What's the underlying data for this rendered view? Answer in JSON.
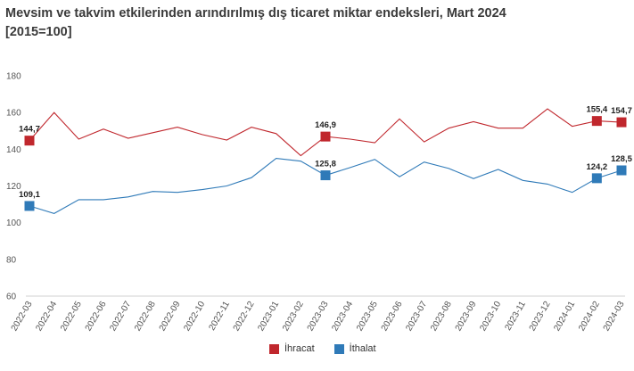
{
  "title": "Mevsim ve takvim etkilerinden arındırılmış dış ticaret miktar endeksleri, Mart 2024",
  "subtitle": "[2015=100]",
  "chart_data": {
    "type": "line",
    "ylim": [
      60,
      180
    ],
    "yticks": [
      60,
      80,
      100,
      120,
      140,
      160,
      180
    ],
    "categories": [
      "2022-03",
      "2022-04",
      "2022-05",
      "2022-06",
      "2022-07",
      "2022-08",
      "2022-09",
      "2022-10",
      "2022-11",
      "2022-12",
      "2023-01",
      "2023-02",
      "2023-03",
      "2023-04",
      "2023-05",
      "2023-06",
      "2023-07",
      "2023-08",
      "2023-09",
      "2023-10",
      "2023-11",
      "2023-12",
      "2024-01",
      "2024-02",
      "2024-03"
    ],
    "series": [
      {
        "name": "İhracat",
        "color": "#c0272d",
        "values": [
          144.7,
          160.0,
          145.5,
          151.0,
          146.0,
          149.0,
          152.0,
          148.0,
          145.0,
          152.0,
          148.5,
          136.5,
          146.9,
          145.5,
          143.5,
          156.5,
          144.0,
          151.5,
          155.0,
          151.5,
          151.5,
          162.0,
          152.5,
          155.4,
          154.7
        ],
        "labels": {
          "0": "144,7",
          "12": "146,9",
          "23": "155,4",
          "24": "154,7"
        }
      },
      {
        "name": "İthalat",
        "color": "#2f7ab8",
        "values": [
          109.1,
          105.0,
          112.5,
          112.5,
          114.0,
          117.0,
          116.5,
          118.0,
          120.0,
          124.5,
          135.0,
          133.5,
          125.8,
          130.0,
          134.5,
          125.0,
          133.0,
          129.5,
          124.0,
          129.0,
          123.0,
          121.0,
          116.5,
          124.2,
          128.5
        ],
        "labels": {
          "0": "109,1",
          "12": "125,8",
          "23": "124,2",
          "24": "128,5"
        }
      }
    ]
  },
  "legend": {
    "exports": "İhracat",
    "imports": "İthalat"
  }
}
